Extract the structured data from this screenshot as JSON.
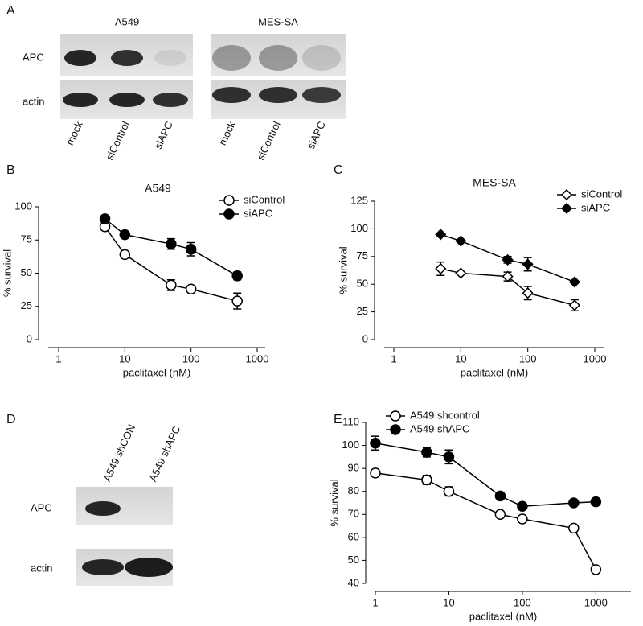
{
  "panel_labels": [
    "A",
    "B",
    "C",
    "D",
    "E"
  ],
  "blot_a": {
    "groups": [
      "A549",
      "MES-SA"
    ],
    "rows": [
      "APC",
      "actin"
    ],
    "lanes": [
      "mock",
      "siControl",
      "siAPC"
    ]
  },
  "blot_d": {
    "rows": [
      "APC",
      "actin"
    ],
    "lanes": [
      "A549 shCON",
      "A549 shAPC"
    ]
  },
  "chart_data": [
    {
      "type": "line",
      "title": "A549",
      "x_label": "paclitaxel (nM)",
      "y_label": "% survival",
      "x": [
        5,
        10,
        50,
        100,
        500
      ],
      "xscale": "log",
      "xlim": [
        1,
        1000
      ],
      "xticks": [
        1,
        10,
        100,
        1000
      ],
      "ylim": [
        0,
        100
      ],
      "yticks": [
        0,
        25,
        50,
        75,
        100
      ],
      "legend": "top-right",
      "series": [
        {
          "name": "siControl",
          "color": "#000000",
          "marker": "open-circle",
          "values": [
            85,
            64,
            41,
            38,
            29
          ],
          "errors": [
            1,
            1,
            4,
            1,
            6
          ]
        },
        {
          "name": "siAPC",
          "color": "#000000",
          "marker": "filled-circle",
          "values": [
            91,
            79,
            72,
            68,
            48
          ],
          "errors": [
            1,
            1,
            4,
            5,
            3
          ]
        }
      ]
    },
    {
      "type": "line",
      "title": "MES-SA",
      "x_label": "paclitaxel (nM)",
      "y_label": "% survival",
      "x": [
        5,
        10,
        50,
        100,
        500
      ],
      "xscale": "log",
      "xlim": [
        1,
        1000
      ],
      "xticks": [
        1,
        10,
        100,
        1000
      ],
      "ylim": [
        0,
        125
      ],
      "yticks": [
        0,
        25,
        50,
        75,
        100,
        125
      ],
      "legend": "top-right",
      "series": [
        {
          "name": "siControl",
          "color": "#000000",
          "marker": "open-diamond",
          "values": [
            64,
            60,
            57,
            42,
            31
          ],
          "errors": [
            6,
            1,
            4,
            6,
            5
          ]
        },
        {
          "name": "siAPC",
          "color": "#000000",
          "marker": "filled-diamond",
          "values": [
            95,
            89,
            72,
            68,
            52
          ],
          "errors": [
            1,
            1,
            3,
            6,
            1
          ]
        }
      ]
    },
    {
      "type": "line",
      "x_label": "paclitaxel (nM)",
      "y_label": "% survival",
      "x": [
        1,
        5,
        10,
        50,
        100,
        500,
        1000
      ],
      "xscale": "log",
      "xlim": [
        1,
        3000
      ],
      "xticks": [
        1,
        10,
        100,
        1000
      ],
      "ylim": [
        40,
        110
      ],
      "yticks": [
        40,
        50,
        60,
        70,
        80,
        90,
        100,
        110
      ],
      "legend": "top-left",
      "series": [
        {
          "name": "A549 shcontrol",
          "color": "#000000",
          "marker": "open-circle",
          "values": [
            88,
            85,
            80,
            70,
            68,
            64,
            46
          ],
          "errors": [
            1,
            2,
            2,
            1,
            1,
            1,
            1
          ]
        },
        {
          "name": "A549 shAPC",
          "color": "#000000",
          "marker": "filled-circle",
          "values": [
            101,
            97,
            95,
            78,
            73.5,
            75,
            75.5
          ],
          "errors": [
            3,
            2,
            3,
            1,
            1,
            1,
            1
          ]
        }
      ]
    }
  ]
}
